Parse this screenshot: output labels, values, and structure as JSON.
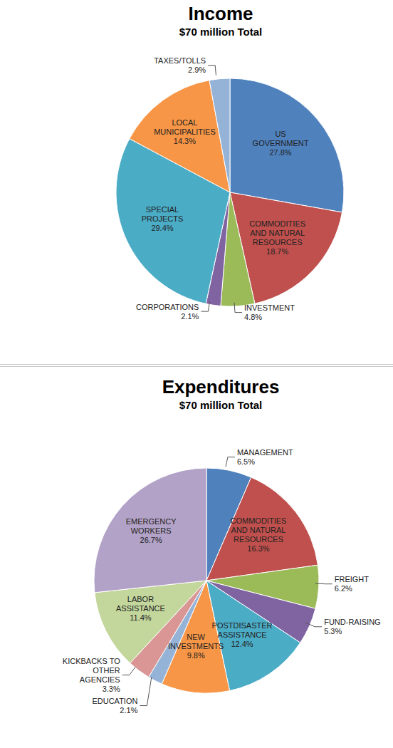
{
  "chart_data": [
    {
      "type": "pie",
      "title": "Income",
      "subtitle": "$70 million Total",
      "categories": [
        "US GOVERNMENT",
        "COMMODITIES AND NATURAL RESOURCES",
        "INVESTMENT",
        "CORPORATIONS",
        "SPECIAL PROJECTS",
        "LOCAL MUNICIPALITIES",
        "TAXES/TOLLS"
      ],
      "values": [
        27.8,
        18.7,
        4.8,
        2.1,
        29.4,
        14.3,
        2.9
      ],
      "value_labels": [
        "27.8%",
        "18.7%",
        "4.8%",
        "2.1%",
        "29.4%",
        "14.3%",
        "2.9%"
      ],
      "colors": [
        "#4f81bd",
        "#c0504d",
        "#9bbb59",
        "#8064a2",
        "#4bacc6",
        "#f79646",
        "#95b3d7"
      ],
      "data_labels": true
    },
    {
      "type": "pie",
      "title": "Expenditures",
      "subtitle": "$70 million Total",
      "categories": [
        "MANAGEMENT",
        "COMMODITIES AND NATURAL RESOURCES",
        "FREIGHT",
        "FUND-RAISING",
        "POSTDISASTER ASSISTANCE",
        "NEW INVESTMENTS",
        "EDUCATION",
        "KICKBACKS TO OTHER AGENCIES",
        "LABOR ASSISTANCE",
        "EMERGENCY WORKERS"
      ],
      "values": [
        6.5,
        16.3,
        6.2,
        5.3,
        12.4,
        9.8,
        2.1,
        3.3,
        11.4,
        26.7
      ],
      "value_labels": [
        "6.5%",
        "16.3%",
        "6.2%",
        "5.3%",
        "12.4%",
        "9.8%",
        "2.1%",
        "3.3%",
        "11.4%",
        "26.7%"
      ],
      "colors": [
        "#4f81bd",
        "#c0504d",
        "#9bbb59",
        "#8064a2",
        "#4bacc6",
        "#f79646",
        "#95b3d7",
        "#d99694",
        "#c3d69b",
        "#b3a2c7"
      ],
      "data_labels": true
    }
  ]
}
